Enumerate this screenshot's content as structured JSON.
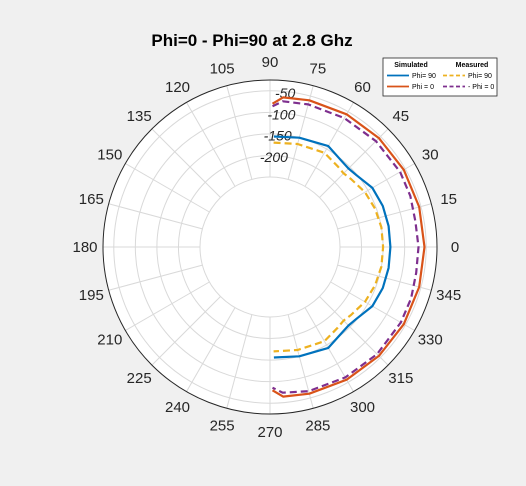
{
  "figure": {
    "background": "#f0f0f0",
    "axes_background": "#ffffff",
    "grid_color": "#d9d9d9"
  },
  "chart_data": {
    "type": "polar",
    "title": "Phi=0 - Phi=90 at 2.8 Ghz",
    "theta_ticks": [
      0,
      15,
      30,
      45,
      60,
      75,
      90,
      105,
      120,
      135,
      150,
      165,
      180,
      195,
      210,
      225,
      240,
      255,
      270,
      285,
      300,
      315,
      330,
      345
    ],
    "r_ticks": [
      -200,
      -150,
      -100,
      -50
    ],
    "r_lim": [
      -250,
      -25
    ],
    "grid": true,
    "legend": {
      "placement": "top-right",
      "header_left": "Simulated",
      "header_right": "Measured",
      "entries": [
        {
          "label": "Phi= 90",
          "color": "#0072bd",
          "style": "solid"
        },
        {
          "label": "Phi= 90",
          "color": "#edb120",
          "style": "dashed"
        },
        {
          "label": "Phi = 0",
          "color": "#d95319",
          "style": "solid"
        },
        {
          "label": "- Phi = 0",
          "color": "#7e2f8e",
          "style": "dashed"
        }
      ]
    },
    "series": [
      {
        "name": "Phi= 90",
        "group": "Simulated",
        "color": "#0072bd",
        "style": "solid",
        "theta": [
          88,
          75,
          60,
          50,
          45,
          40,
          30,
          20,
          10,
          0,
          -10,
          -20,
          -30,
          -40,
          -45,
          -50,
          -60,
          -75,
          -88
        ],
        "r": [
          -156,
          -150,
          -142,
          -153,
          -155,
          -152,
          -138,
          -134,
          -133,
          -133,
          -133,
          -134,
          -138,
          -152,
          -155,
          -153,
          -142,
          -150,
          -156
        ]
      },
      {
        "name": "Phi= 90",
        "group": "Measured",
        "color": "#edb120",
        "style": "dashed",
        "theta": [
          88,
          75,
          60,
          50,
          45,
          40,
          30,
          20,
          10,
          0,
          -10,
          -20,
          -30,
          -40,
          -45,
          -50,
          -60,
          -75,
          -88
        ],
        "r": [
          -170,
          -165,
          -160,
          -168,
          -171,
          -167,
          -158,
          -153,
          -150,
          -150,
          -150,
          -153,
          -158,
          -167,
          -171,
          -168,
          -160,
          -165,
          -170
        ]
      },
      {
        "name": "Phi = 0",
        "group": "Simulated",
        "color": "#d95319",
        "style": "solid",
        "theta": [
          89,
          85,
          75,
          60,
          45,
          30,
          15,
          0,
          -15,
          -30,
          -45,
          -60,
          -75,
          -85,
          -89
        ],
        "r": [
          -80,
          -64,
          -60,
          -57,
          -55,
          -54,
          -54,
          -54,
          -54,
          -54,
          -55,
          -57,
          -60,
          -64,
          -80
        ]
      },
      {
        "name": "- Phi = 0",
        "group": "Measured",
        "color": "#7e2f8e",
        "style": "dashed",
        "theta": [
          89,
          85,
          75,
          60,
          45,
          30,
          20,
          10,
          0,
          -10,
          -20,
          -30,
          -45,
          -60,
          -75,
          -85,
          -89
        ],
        "r": [
          -86,
          -73,
          -70,
          -67,
          -65,
          -64,
          -66,
          -70,
          -68,
          -68,
          -64,
          -62,
          -61,
          -63,
          -66,
          -73,
          -86
        ]
      }
    ]
  }
}
